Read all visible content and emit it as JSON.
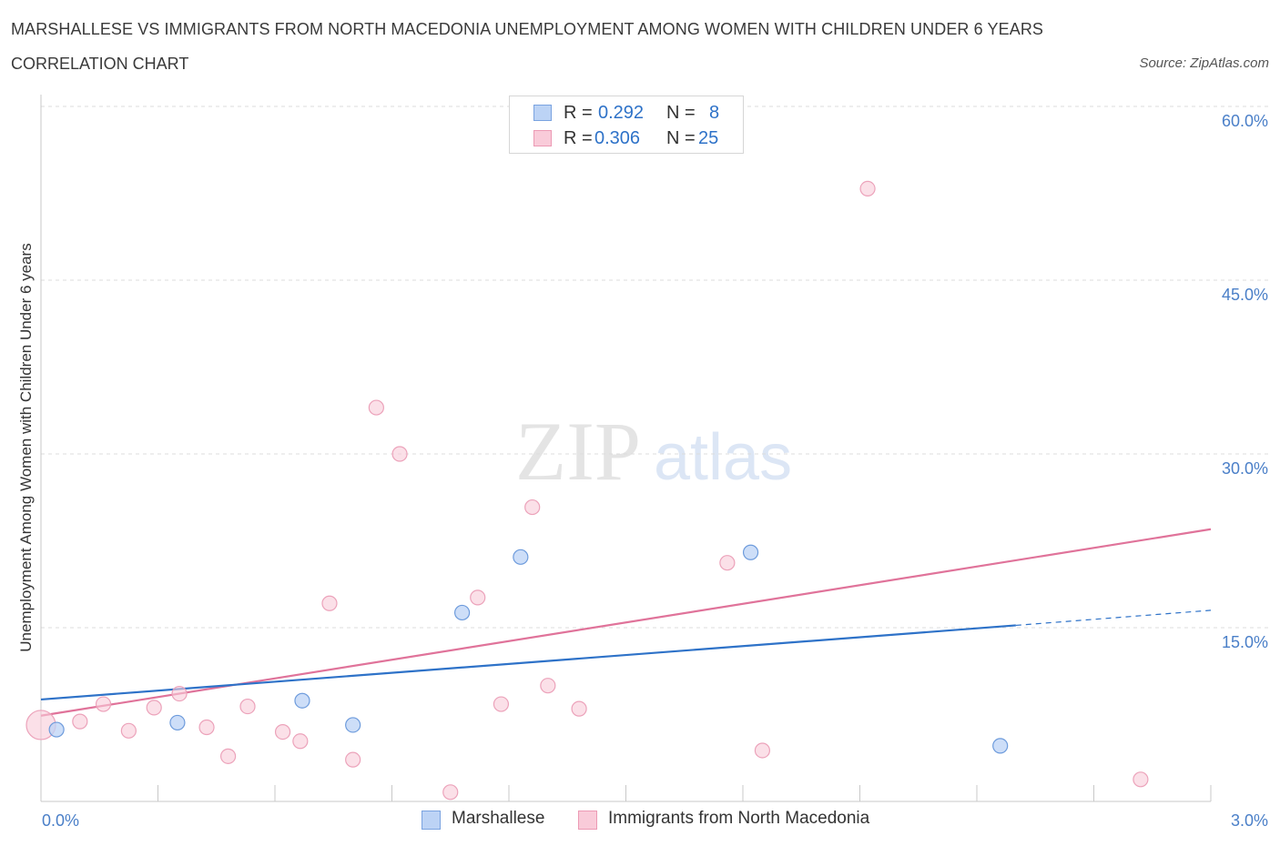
{
  "title": "MARSHALLESE VS IMMIGRANTS FROM NORTH MACEDONIA UNEMPLOYMENT AMONG WOMEN WITH CHILDREN UNDER 6 YEARS",
  "subtitle": "CORRELATION CHART",
  "source": "Source: ZipAtlas.com",
  "watermark": {
    "zip": "ZIP",
    "atlas": "atlas"
  },
  "legend_top": [
    {
      "r_label": "R =",
      "r_value": "0.292",
      "n_label": "N =",
      "n_value": "8"
    },
    {
      "r_label": "R =",
      "r_value": "0.306",
      "n_label": "N =",
      "n_value": "25"
    }
  ],
  "chart_data": {
    "type": "scatter",
    "title": "MARSHALLESE VS IMMIGRANTS FROM NORTH MACEDONIA UNEMPLOYMENT AMONG WOMEN WITH CHILDREN UNDER 6 YEARS",
    "xlabel": "",
    "ylabel": "Unemployment Among Women with Children Under 6 years",
    "xlim": [
      0,
      3.0
    ],
    "ylim": [
      0,
      60
    ],
    "x_tick_labels": [
      {
        "value": 0,
        "label": "0.0%"
      },
      {
        "value": 3.0,
        "label": "3.0%"
      }
    ],
    "y_tick_labels": [
      {
        "value": 15,
        "label": "15.0%"
      },
      {
        "value": 30,
        "label": "30.0%"
      },
      {
        "value": 45,
        "label": "45.0%"
      },
      {
        "value": 60,
        "label": "60.0%"
      }
    ],
    "grid": "horizontal dashed",
    "legend_position": "bottom-center",
    "series": [
      {
        "name": "Marshallese",
        "color": "#a9c4ee",
        "line_color": "#2e72c8",
        "points": [
          {
            "x": 0.04,
            "y": 6.2
          },
          {
            "x": 0.35,
            "y": 6.8
          },
          {
            "x": 0.67,
            "y": 8.7
          },
          {
            "x": 0.8,
            "y": 6.6
          },
          {
            "x": 1.08,
            "y": 16.3
          },
          {
            "x": 1.23,
            "y": 21.1
          },
          {
            "x": 1.82,
            "y": 21.5
          },
          {
            "x": 2.46,
            "y": 4.8
          }
        ],
        "trend": {
          "x0": 0,
          "y0": 8.8,
          "x1": 2.5,
          "y1": 15.2,
          "x_dashed_end": 3.0,
          "y_dashed_end": 16.5
        }
      },
      {
        "name": "Immigrants from North Macedonia",
        "color": "#f4b8cb",
        "line_color": "#e0739a",
        "points": [
          {
            "x": 0.0,
            "y": 6.6
          },
          {
            "x": 0.1,
            "y": 6.9
          },
          {
            "x": 0.16,
            "y": 8.4
          },
          {
            "x": 0.225,
            "y": 6.1
          },
          {
            "x": 0.29,
            "y": 8.1
          },
          {
            "x": 0.355,
            "y": 9.3
          },
          {
            "x": 0.425,
            "y": 6.4
          },
          {
            "x": 0.48,
            "y": 3.9
          },
          {
            "x": 0.53,
            "y": 8.2
          },
          {
            "x": 0.62,
            "y": 6.0
          },
          {
            "x": 0.665,
            "y": 5.2
          },
          {
            "x": 0.74,
            "y": 17.1
          },
          {
            "x": 0.8,
            "y": 3.6
          },
          {
            "x": 0.86,
            "y": 34.0
          },
          {
            "x": 0.92,
            "y": 30.0
          },
          {
            "x": 1.05,
            "y": 0.8
          },
          {
            "x": 1.12,
            "y": 17.6
          },
          {
            "x": 1.18,
            "y": 8.4
          },
          {
            "x": 1.26,
            "y": 25.4
          },
          {
            "x": 1.3,
            "y": 10.0
          },
          {
            "x": 1.38,
            "y": 8.0
          },
          {
            "x": 1.76,
            "y": 20.6
          },
          {
            "x": 1.85,
            "y": 4.4
          },
          {
            "x": 2.12,
            "y": 52.9
          },
          {
            "x": 2.82,
            "y": 1.9
          }
        ],
        "trend": {
          "x0": 0,
          "y0": 7.4,
          "x1": 3.0,
          "y1": 23.5
        }
      }
    ]
  },
  "legend_bottom": [
    "Marshallese",
    "Immigrants from North Macedonia"
  ]
}
